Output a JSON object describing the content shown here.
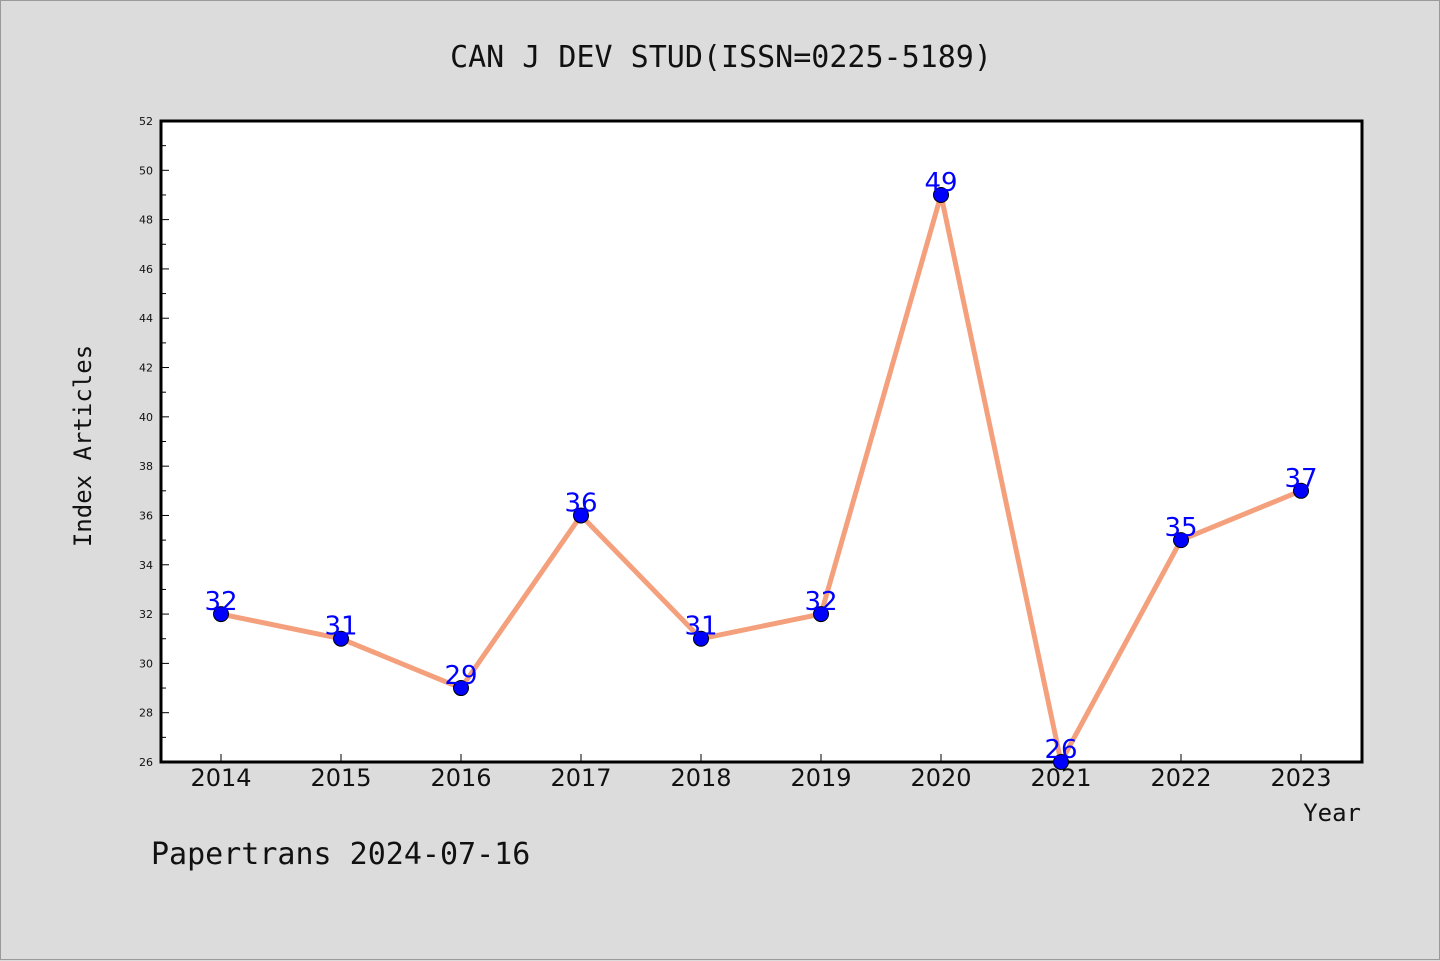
{
  "footer": "Papertrans 2024-07-16",
  "colors": {
    "background": "#dcdcdc",
    "plot_background": "#ffffff",
    "line": "#f4a07c",
    "marker": "#0000ff",
    "data_label": "#0000ff"
  },
  "chart_data": {
    "type": "line",
    "title": "CAN J DEV STUD(ISSN=0225-5189)",
    "xlabel": "Year",
    "ylabel": "Index Articles",
    "categories": [
      "2014",
      "2015",
      "2016",
      "2017",
      "2018",
      "2019",
      "2020",
      "2021",
      "2022",
      "2023"
    ],
    "series": [
      {
        "values": [
          32,
          31,
          29,
          36,
          31,
          32,
          49,
          26,
          35,
          37
        ]
      }
    ],
    "ylim": [
      26,
      52
    ],
    "yticks": [
      26,
      28,
      30,
      32,
      34,
      36,
      38,
      40,
      42,
      44,
      46,
      48,
      50,
      52
    ],
    "grid": false,
    "legend": "none",
    "data_labels": true
  }
}
